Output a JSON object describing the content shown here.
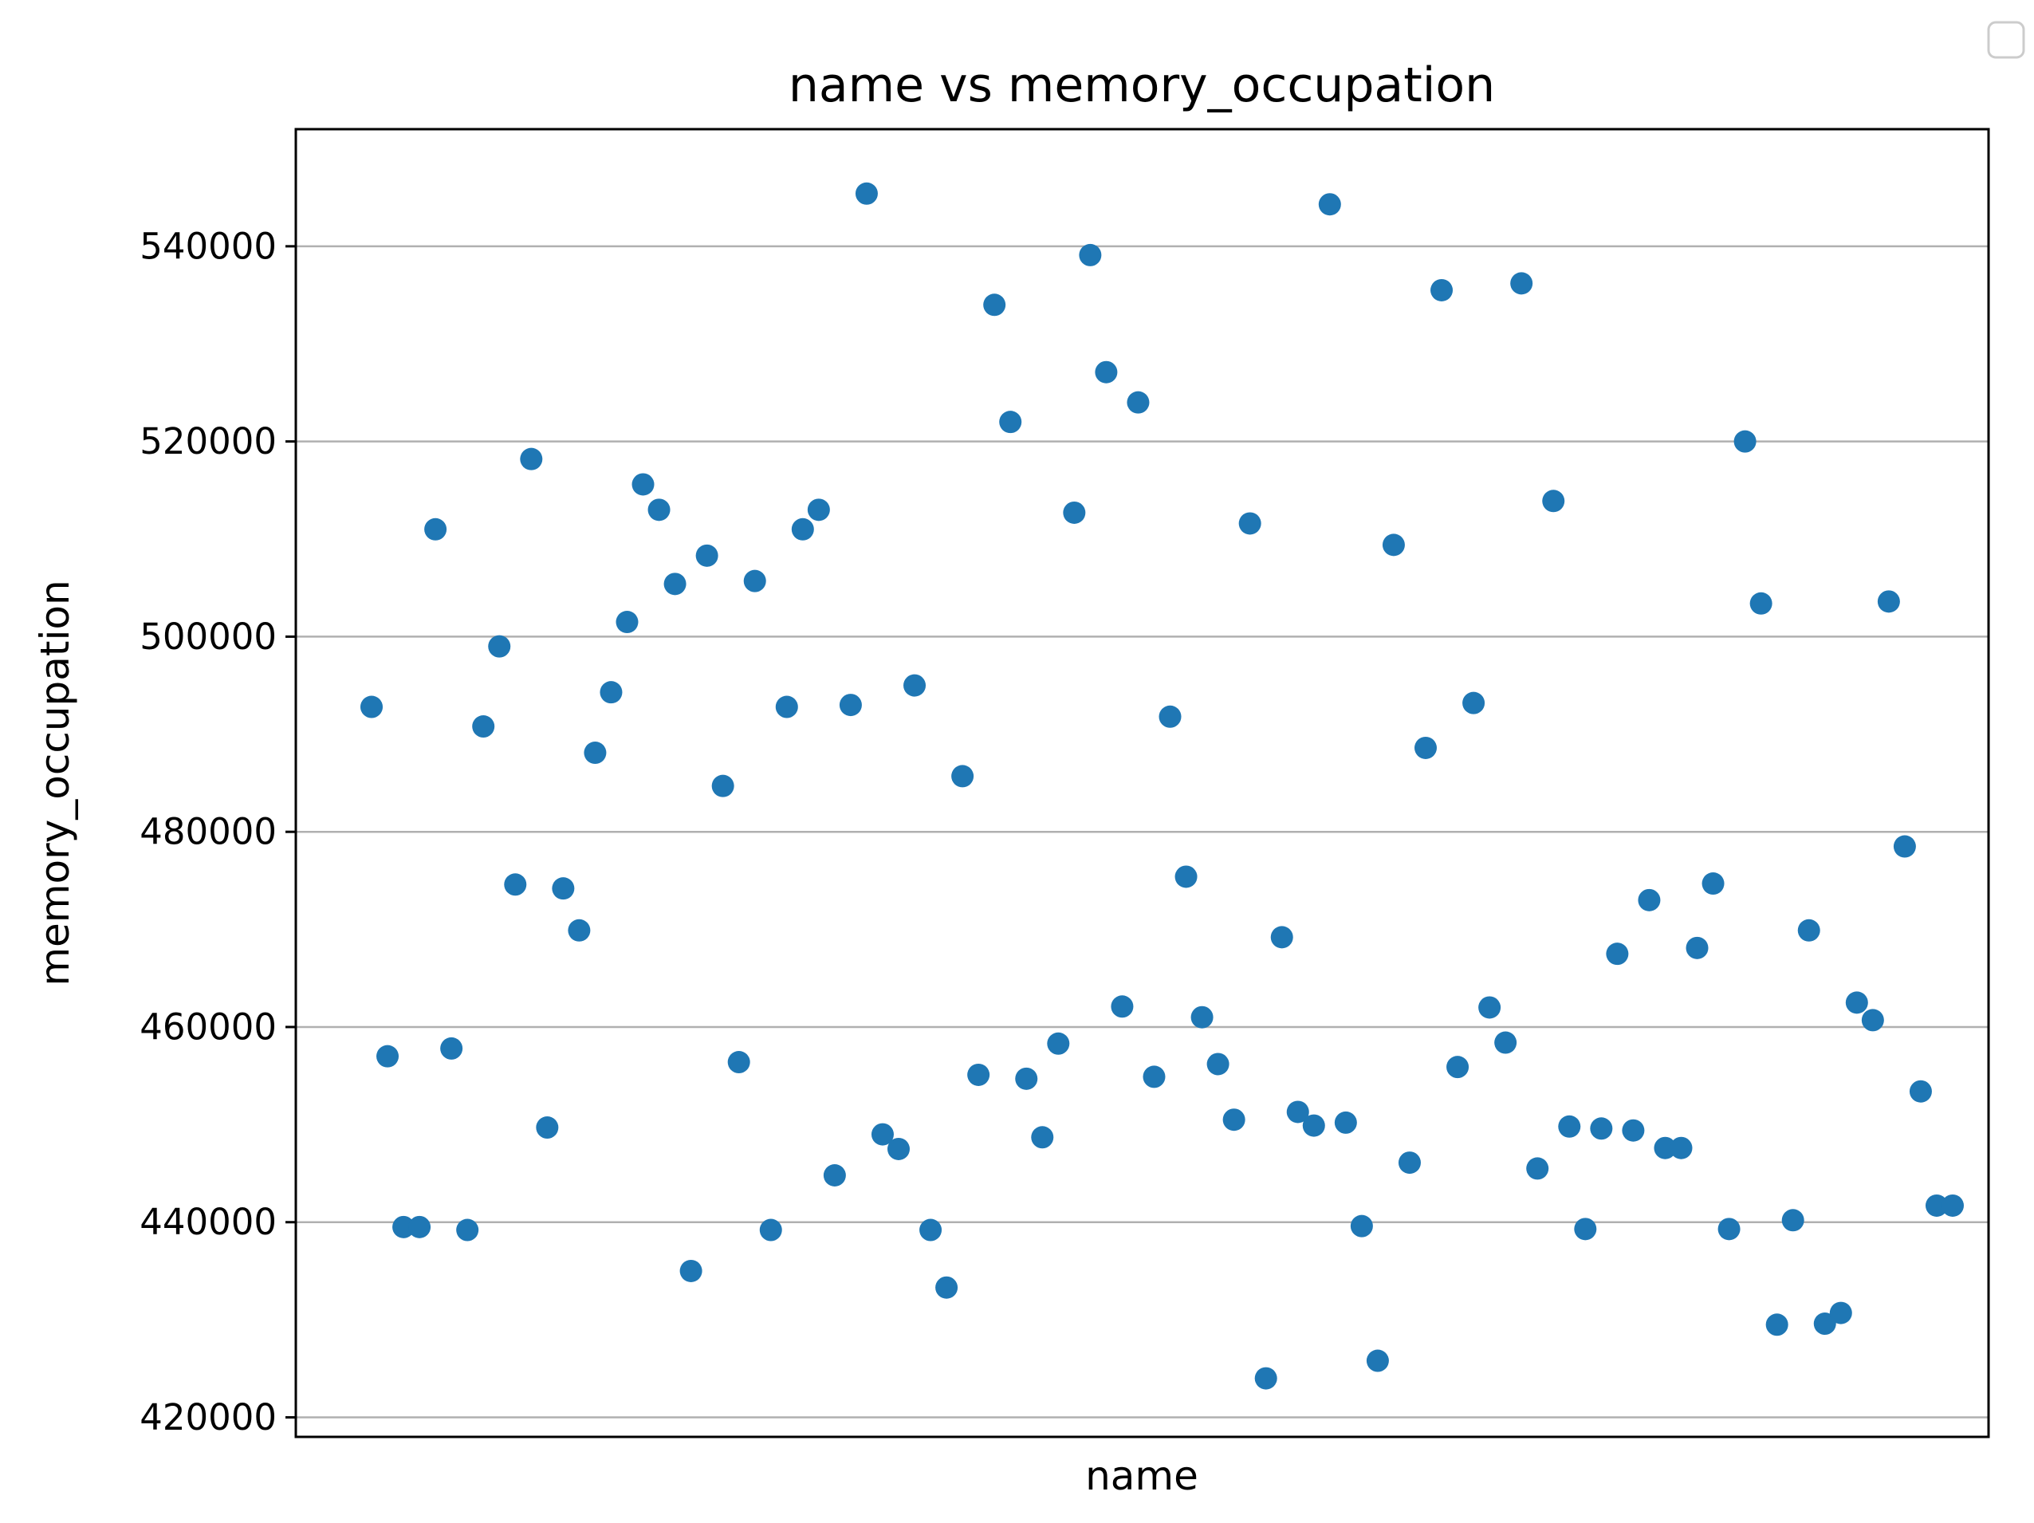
{
  "chart_data": {
    "type": "scatter",
    "title": "name vs memory_occupation",
    "xlabel": "name",
    "ylabel": "memory_occupation",
    "ylim": [
      418000,
      552000
    ],
    "yticks": [
      420000,
      440000,
      460000,
      480000,
      500000,
      520000,
      540000
    ],
    "ytick_labels": [
      "420000",
      "440000",
      "460000",
      "480000",
      "500000",
      "520000",
      "540000"
    ],
    "xticks_visible": false,
    "grid": "y",
    "legend": "top-right",
    "legend_entries": [],
    "marker_color": "#1f77b4",
    "series": [
      {
        "x": [
          0,
          1,
          2,
          3,
          4,
          5,
          6,
          7,
          8,
          9,
          10,
          11,
          12,
          13,
          14,
          15,
          16,
          17,
          18,
          19,
          20,
          21,
          22,
          23,
          24,
          25,
          26,
          27,
          28,
          29,
          30,
          31,
          32,
          33,
          34,
          35,
          36,
          37,
          38,
          39,
          40,
          41,
          42,
          43,
          44,
          45,
          46,
          47,
          48,
          49,
          50,
          51,
          52,
          53,
          54,
          55,
          56,
          57,
          58,
          59,
          60,
          61,
          62,
          63,
          64,
          65,
          66,
          67,
          68,
          69,
          70,
          71,
          72,
          73,
          74,
          75,
          76,
          77,
          78,
          79,
          80,
          81,
          82,
          83,
          84,
          85,
          86,
          87,
          88,
          89,
          90,
          91,
          92,
          93,
          94,
          95,
          96,
          97,
          98,
          99
        ],
        "y": [
          492800,
          457000,
          439500,
          439500,
          511000,
          457800,
          439200,
          490800,
          499000,
          474600,
          518200,
          449700,
          474200,
          469900,
          488100,
          494300,
          501500,
          515600,
          513000,
          505400,
          435000,
          508300,
          484700,
          456400,
          505700,
          439200,
          492800,
          511000,
          513000,
          444800,
          493000,
          545400,
          449000,
          447500,
          495000,
          439200,
          433300,
          485700,
          455100,
          534000,
          522000,
          454700,
          448700,
          458300,
          512700,
          539100,
          527100,
          462100,
          524000,
          454900,
          491800,
          475400,
          461000,
          456200,
          450500,
          511600,
          424000,
          469200,
          451300,
          449900,
          544300,
          450200,
          439600,
          425800,
          509400,
          446100,
          488600,
          535500,
          455900,
          493200,
          462000,
          458400,
          536200,
          445500,
          513900,
          449800,
          439300,
          449600,
          467500,
          449400,
          473000,
          447600,
          447600,
          468100,
          474700,
          439300,
          520000,
          503400,
          429500,
          440200,
          469900,
          429600,
          430700,
          462500,
          460700,
          503600,
          478500,
          453400,
          441700,
          441700
        ]
      }
    ]
  }
}
